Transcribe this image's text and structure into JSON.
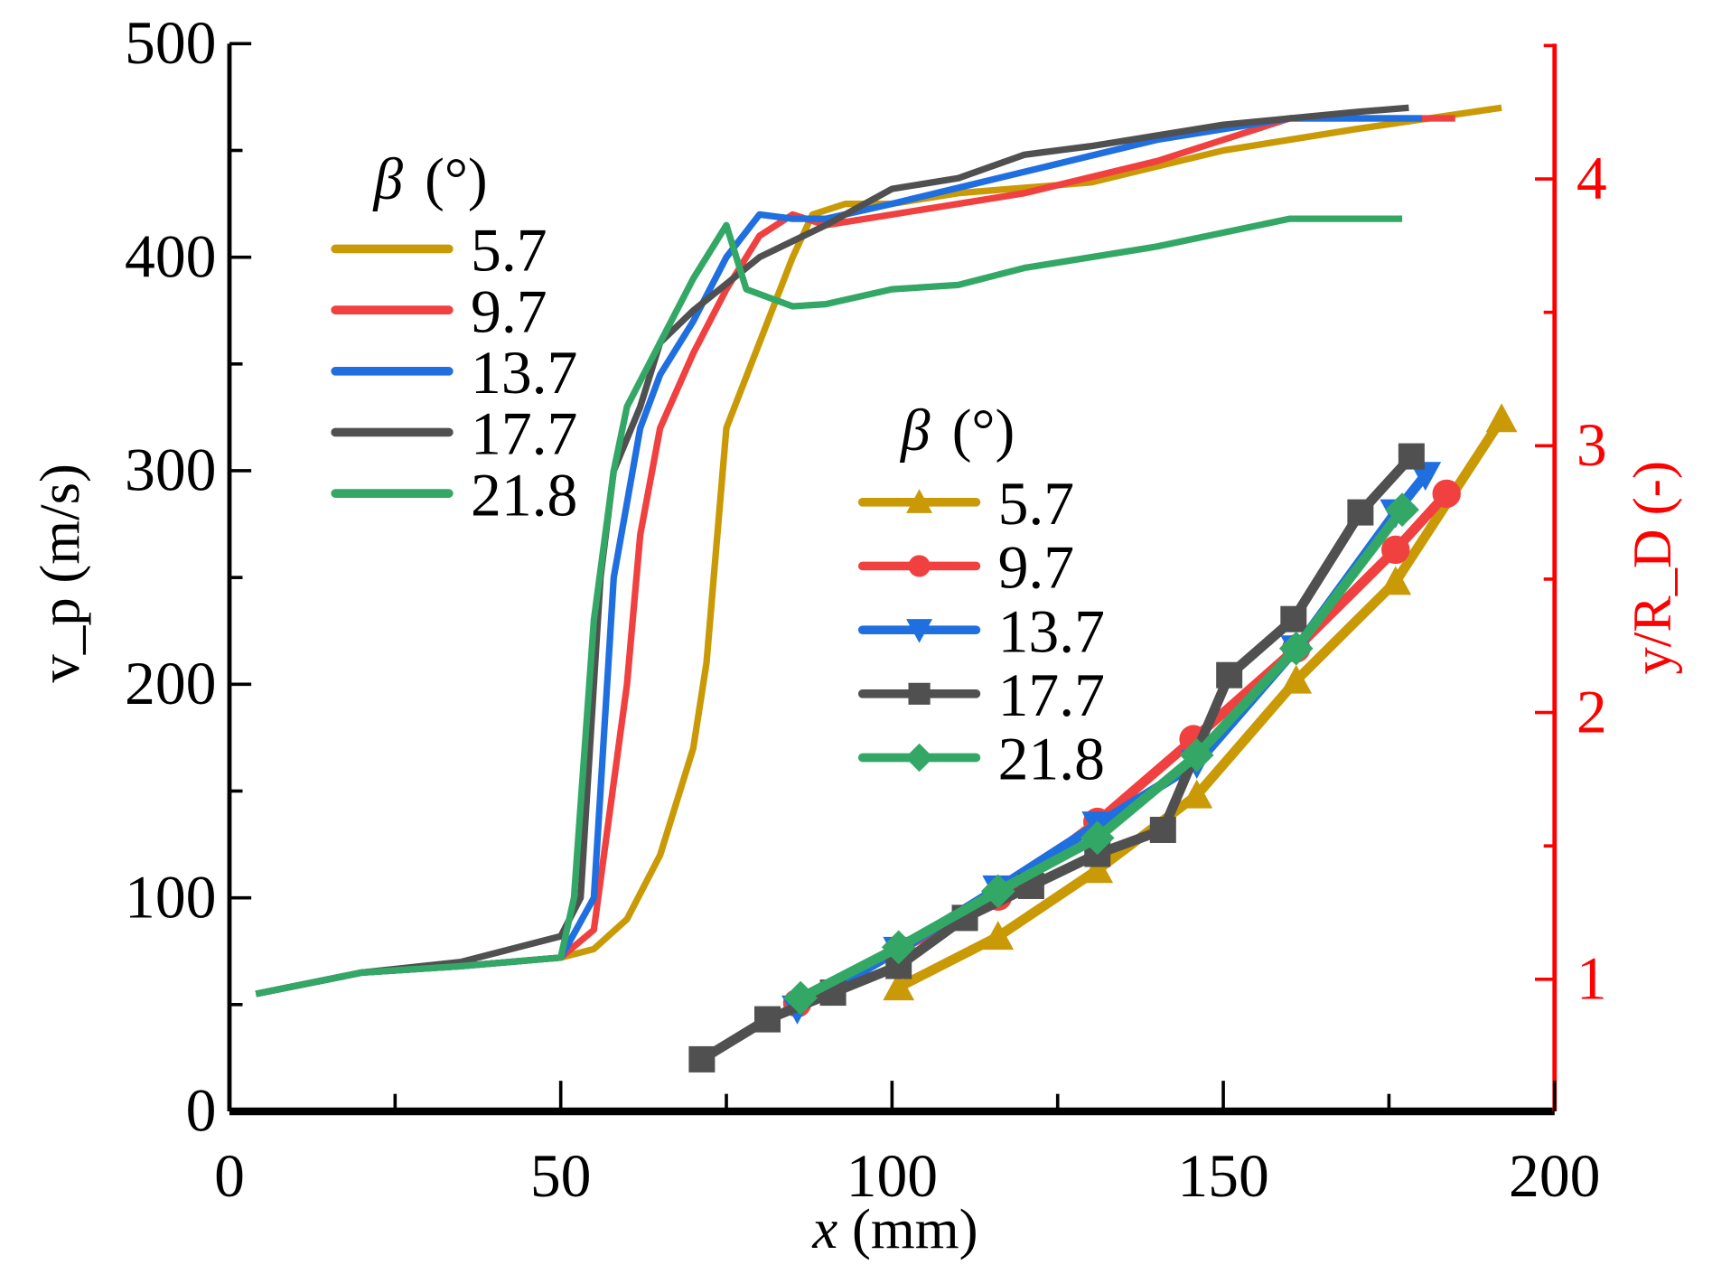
{
  "chart_data": {
    "type": "line",
    "xlabel": "x (mm)",
    "xlabel_var": "x",
    "xlabel_unit": "(mm)",
    "ylabel_left": "v_p (m/s)",
    "ylabel_left_var": "v",
    "ylabel_left_sub": "p",
    "ylabel_left_unit": "(m/s)",
    "ylabel_right": "y/R_D (-)",
    "ylabel_right_var": "y/R",
    "ylabel_right_sub": "D",
    "ylabel_right_unit": "(-)",
    "xlim": [
      0,
      200
    ],
    "ylim_left": [
      0,
      500
    ],
    "ylim_right": [
      0.505,
      4.507
    ],
    "x_ticks": [
      "0",
      "50",
      "100",
      "150",
      "200"
    ],
    "y_left_ticks": [
      "0",
      "100",
      "200",
      "300",
      "400",
      "500"
    ],
    "y_right_ticks": [
      "1",
      "2",
      "3",
      "4"
    ],
    "right_axis_color": "#ff0000",
    "legend_left": {
      "title_symbol": "β",
      "title_unit": "(°)",
      "placement": "upper-left"
    },
    "legend_right": {
      "title_symbol": "β",
      "title_unit": "(°)",
      "placement": "center"
    },
    "velocity_series": [
      {
        "name": "5.7",
        "color": "#c99a06",
        "x": [
          4,
          20,
          35,
          50,
          55,
          60,
          65,
          70,
          72,
          75,
          80,
          85,
          88,
          93,
          100,
          110,
          130,
          150,
          170,
          192
        ],
        "y": [
          55,
          65,
          68,
          72,
          76,
          90,
          120,
          170,
          210,
          320,
          360,
          400,
          420,
          425,
          425,
          430,
          435,
          450,
          460,
          470
        ]
      },
      {
        "name": "9.7",
        "color": "#f04040",
        "x": [
          4,
          20,
          35,
          50,
          55,
          60,
          62,
          65,
          70,
          75,
          80,
          85,
          90,
          100,
          120,
          140,
          160,
          185
        ],
        "y": [
          55,
          65,
          68,
          72,
          85,
          200,
          270,
          320,
          355,
          385,
          410,
          420,
          415,
          420,
          430,
          445,
          465,
          465
        ]
      },
      {
        "name": "13.7",
        "color": "#1f6fe0",
        "x": [
          4,
          20,
          35,
          50,
          55,
          58,
          62,
          65,
          70,
          75,
          80,
          85,
          90,
          100,
          120,
          140,
          160,
          180
        ],
        "y": [
          55,
          65,
          68,
          72,
          100,
          250,
          320,
          345,
          370,
          400,
          420,
          418,
          418,
          425,
          440,
          455,
          465,
          465
        ]
      },
      {
        "name": "17.7",
        "color": "#505050",
        "x": [
          4,
          20,
          35,
          50,
          53,
          56,
          58,
          62,
          65,
          70,
          80,
          90,
          100,
          110,
          120,
          130,
          150,
          170,
          178
        ],
        "y": [
          55,
          65,
          70,
          82,
          100,
          250,
          300,
          330,
          360,
          375,
          400,
          415,
          432,
          437,
          448,
          452,
          462,
          468,
          470
        ]
      },
      {
        "name": "21.8",
        "color": "#33a866",
        "x": [
          4,
          20,
          35,
          50,
          52,
          55,
          58,
          60,
          65,
          70,
          75,
          78,
          85,
          90,
          100,
          110,
          120,
          140,
          160,
          177
        ],
        "y": [
          55,
          65,
          68,
          72,
          100,
          230,
          300,
          330,
          360,
          390,
          415,
          385,
          377,
          378,
          385,
          387,
          395,
          405,
          418,
          418
        ]
      }
    ],
    "position_series": [
      {
        "name": "5.7",
        "color": "#c99a06",
        "marker": "triangle-up",
        "x": [
          101,
          116,
          131,
          146,
          161,
          176,
          192
        ],
        "y": [
          0.97,
          1.16,
          1.41,
          1.69,
          2.12,
          2.49,
          3.1
        ]
      },
      {
        "name": "9.7",
        "color": "#f04040",
        "marker": "circle",
        "x": [
          85.7,
          101,
          116,
          131,
          145.5,
          161,
          176,
          183.7
        ],
        "y": [
          0.91,
          1.11,
          1.31,
          1.59,
          1.9,
          2.24,
          2.61,
          2.82
        ]
      },
      {
        "name": "13.7",
        "color": "#1f6fe0",
        "marker": "triangle-down",
        "x": [
          85.7,
          101,
          116,
          131,
          146,
          161,
          176,
          180.5
        ],
        "y": [
          0.89,
          1.11,
          1.34,
          1.58,
          1.81,
          2.24,
          2.75,
          2.89
        ]
      },
      {
        "name": "17.7",
        "color": "#505050",
        "marker": "square",
        "x": [
          71.3,
          81.2,
          91.1,
          101,
          111,
          121,
          131,
          140.9,
          150.9,
          160.6,
          170.7,
          178.4
        ],
        "y": [
          0.7,
          0.85,
          0.95,
          1.05,
          1.23,
          1.35,
          1.47,
          1.56,
          2.14,
          2.35,
          2.75,
          2.96
        ]
      },
      {
        "name": "21.8",
        "color": "#33a866",
        "marker": "diamond",
        "x": [
          86.2,
          101,
          116,
          131,
          146,
          161,
          177
        ],
        "y": [
          0.93,
          1.12,
          1.33,
          1.53,
          1.84,
          2.24,
          2.76
        ]
      }
    ]
  }
}
